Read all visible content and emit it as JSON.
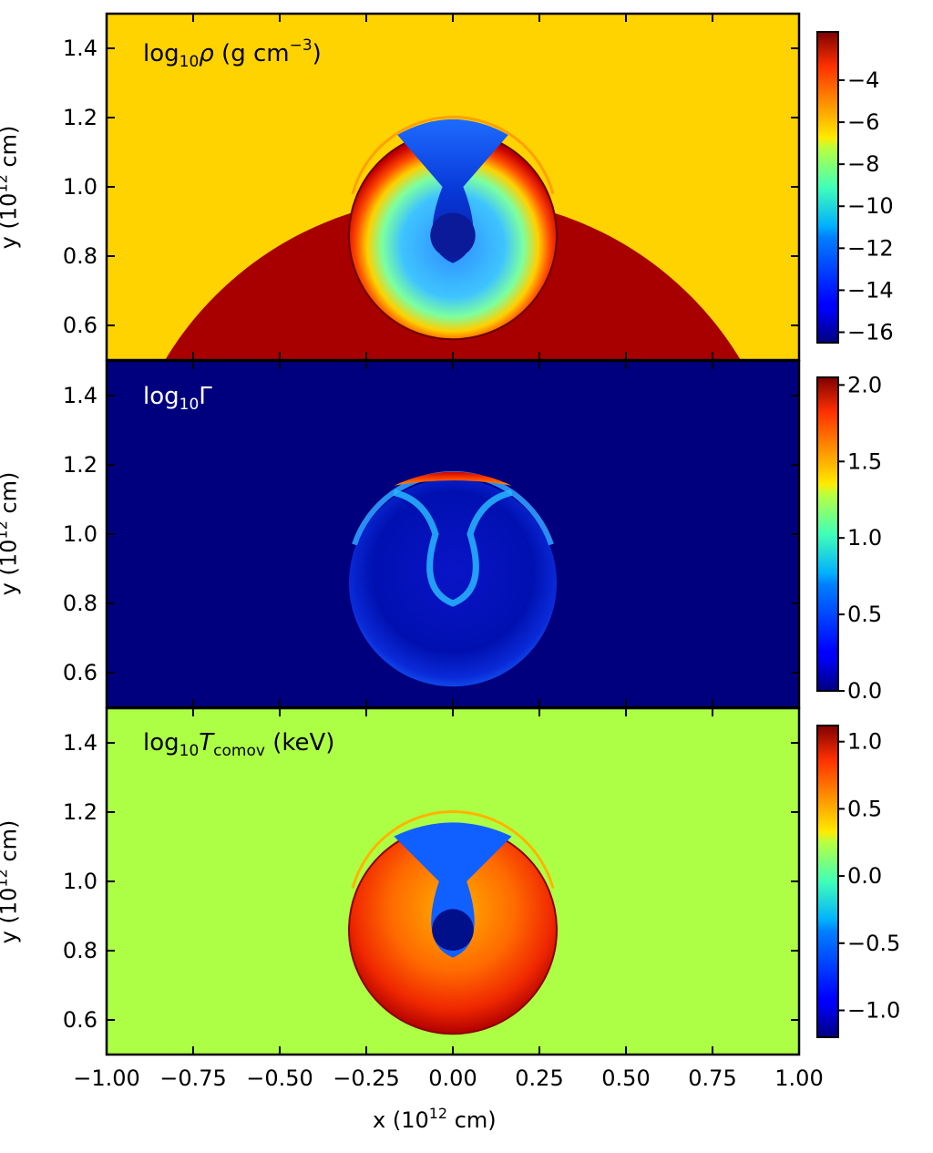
{
  "chart_data": [
    {
      "type": "heatmap",
      "label": {
        "main": "log",
        "sub": "10",
        "var": "ρ",
        "unit_pre": " (g cm",
        "unit_sup": "−3",
        "unit_post": ")"
      },
      "xlabel": "",
      "ylabel": "y (10^12 cm)",
      "xlim": [
        -1.0,
        1.0
      ],
      "ylim": [
        0.5,
        1.5
      ],
      "yticks": [
        "0.6",
        "0.8",
        "1.0",
        "1.2",
        "1.4"
      ],
      "yticks_values": [
        0.6,
        0.8,
        1.0,
        1.2,
        1.4
      ],
      "colorbar": {
        "min": -16.5,
        "max": -1.7,
        "tick_values": [
          -16,
          -14,
          -12,
          -10,
          -8,
          -6,
          -4
        ],
        "tick_labels": [
          "−16",
          "−14",
          "−12",
          "−10",
          "−8",
          "−6",
          "−4"
        ],
        "colormap": "jet"
      },
      "background_color": "#ffd300",
      "features": {
        "star_radius": 0.97,
        "star_center": [
          0.0,
          0.0
        ],
        "star_color": "#a80000",
        "cocoon_center": [
          0.0,
          0.86
        ],
        "cocoon_radius": 0.3
      }
    },
    {
      "type": "heatmap",
      "label": {
        "main": "log",
        "sub": "10",
        "var": "Γ"
      },
      "xlabel": "",
      "ylabel": "y (10^12 cm)",
      "xlim": [
        -1.0,
        1.0
      ],
      "ylim": [
        0.5,
        1.5
      ],
      "yticks": [
        "0.6",
        "0.8",
        "1.0",
        "1.2",
        "1.4"
      ],
      "yticks_values": [
        0.6,
        0.8,
        1.0,
        1.2,
        1.4
      ],
      "colorbar": {
        "min": 0.0,
        "max": 2.05,
        "tick_values": [
          0.0,
          0.5,
          1.0,
          1.5,
          2.0
        ],
        "tick_labels": [
          "0.0",
          "0.5",
          "1.0",
          "1.5",
          "2.0"
        ],
        "colormap": "jet"
      },
      "background_color": "#00007f"
    },
    {
      "type": "heatmap",
      "label": {
        "main": "log",
        "sub": "10",
        "var": "T",
        "var_sub": "comov",
        "unit_post": " (keV)"
      },
      "xlabel": "x (10^12 cm)",
      "ylabel": "y (10^12 cm)",
      "xlim": [
        -1.0,
        1.0
      ],
      "ylim": [
        0.5,
        1.5
      ],
      "xticks": [
        "−1.00",
        "−0.75",
        "−0.50",
        "−0.25",
        "0.00",
        "0.25",
        "0.50",
        "0.75",
        "1.00"
      ],
      "xticks_values": [
        -1.0,
        -0.75,
        -0.5,
        -0.25,
        0.0,
        0.25,
        0.5,
        0.75,
        1.0
      ],
      "yticks": [
        "0.6",
        "0.8",
        "1.0",
        "1.2",
        "1.4"
      ],
      "yticks_values": [
        0.6,
        0.8,
        1.0,
        1.2,
        1.4
      ],
      "colorbar": {
        "min": -1.2,
        "max": 1.12,
        "tick_values": [
          -1.0,
          -0.5,
          0.0,
          0.5,
          1.0
        ],
        "tick_labels": [
          "−1.0",
          "−0.5",
          "0.0",
          "0.5",
          "1.0"
        ],
        "colormap": "jet"
      },
      "background_color": "#adff45"
    }
  ],
  "axis_text": {
    "y_prefix": "y (10",
    "x_prefix": "x (10",
    "exp": "12",
    "suffix": " cm)"
  }
}
